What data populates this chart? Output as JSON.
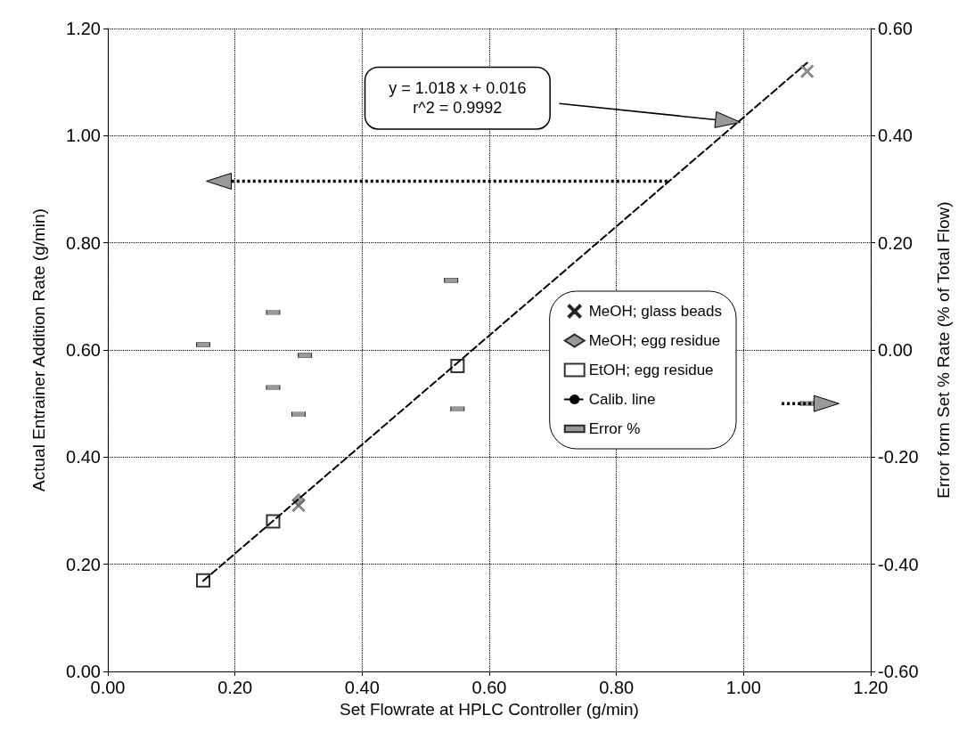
{
  "chart_data": {
    "type": "scatter",
    "xlabel": "Set Flowrate at HPLC Controller (g/min)",
    "ylabel": "Actual Entrainer Addition Rate (g/min)",
    "y2label": "Error form Set % Rate (% of Total Flow)",
    "annotations": [
      "y = 1.018 x + 0.016\nr^2 = 0.9992"
    ],
    "xlim": [
      0,
      1.2
    ],
    "xticks": [
      {
        "value": 0,
        "label": "0.00"
      },
      {
        "value": 0.2,
        "label": "0.20"
      },
      {
        "value": 0.4,
        "label": "0.40"
      },
      {
        "value": 0.6,
        "label": "0.60"
      },
      {
        "value": 0.8,
        "label": "0.80"
      },
      {
        "value": 1.0,
        "label": "1.00"
      },
      {
        "value": 1.2,
        "label": "1.20"
      }
    ],
    "ylim": [
      0,
      1.2
    ],
    "yticks": [
      {
        "value": 0,
        "label": "0.00"
      },
      {
        "value": 0.2,
        "label": "0.20"
      },
      {
        "value": 0.4,
        "label": "0.40"
      },
      {
        "value": 0.6,
        "label": "0.60"
      },
      {
        "value": 0.8,
        "label": "0.80"
      },
      {
        "value": 1.0,
        "label": "1.00"
      },
      {
        "value": 1.2,
        "label": "1.20"
      }
    ],
    "y2lim": [
      -0.6,
      0.6
    ],
    "y2ticks": [
      {
        "value": -0.6,
        "label": "-0.60"
      },
      {
        "value": -0.4,
        "label": "-0.40"
      },
      {
        "value": -0.2,
        "label": "-0.20"
      },
      {
        "value": 0,
        "label": "0.00"
      },
      {
        "value": 0.2,
        "label": "0.20"
      },
      {
        "value": 0.4,
        "label": "0.40"
      },
      {
        "value": 0.6,
        "label": "0.60"
      }
    ],
    "grid": true,
    "legend": "right",
    "series": [
      {
        "name": "MeOH; glass beads",
        "marker": "cross",
        "color": "#808080",
        "x": [
          0.3,
          1.1
        ],
        "values": [
          0.31,
          1.12
        ]
      },
      {
        "name": "MeOH; egg residue",
        "marker": "diamond",
        "color": "#808080",
        "x": [
          0.3
        ],
        "values": [
          0.32
        ]
      },
      {
        "name": "EtOH; egg residue",
        "marker": "square",
        "color": "#000000",
        "x": [
          0.15,
          0.26,
          0.55
        ],
        "values": [
          0.17,
          0.28,
          0.57
        ]
      },
      {
        "name": "Calib. line",
        "type": "line",
        "marker": "none",
        "line_style": "dashed",
        "color": "#000000",
        "x": [
          0.15,
          1.1
        ],
        "values": [
          0.169,
          1.136
        ]
      },
      {
        "name": "Error %",
        "marker": "square",
        "axis": "y2",
        "color": "#808080",
        "x": [
          0.15,
          0.26,
          0.26,
          0.31,
          0.3,
          0.54,
          0.55,
          1.1
        ],
        "values": [
          0.01,
          0.07,
          -0.07,
          -0.01,
          -0.12,
          0.13,
          -0.11,
          -0.1
        ]
      }
    ]
  }
}
